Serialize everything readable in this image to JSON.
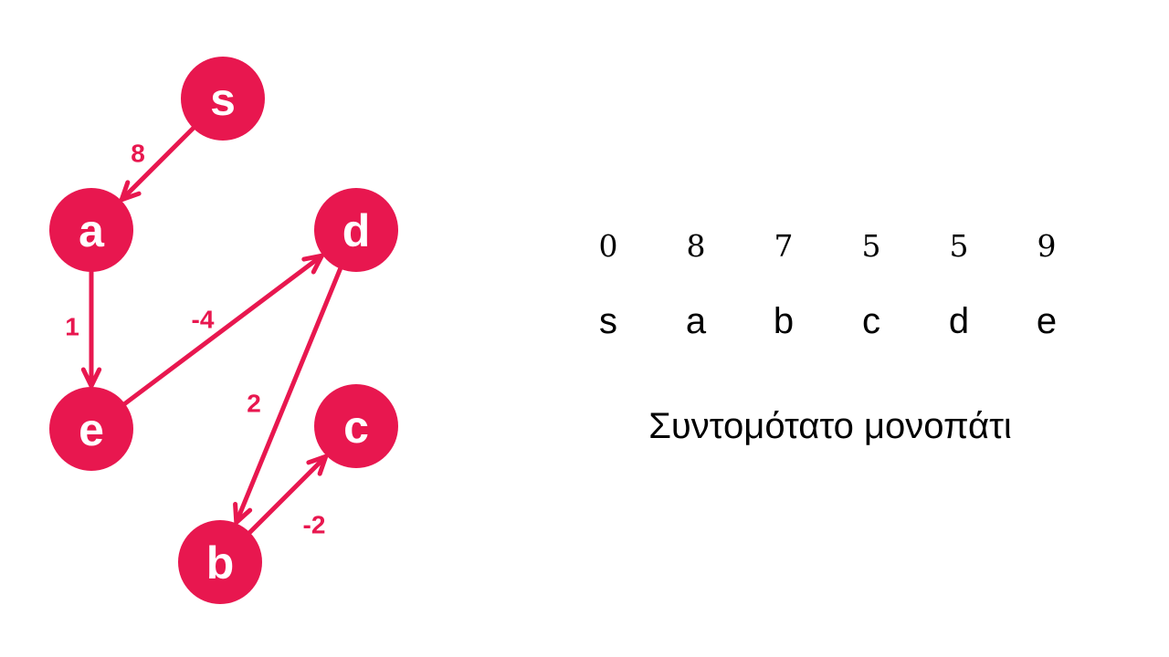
{
  "colors": {
    "accent": "#e8174f",
    "text": "#000000",
    "background": "#ffffff"
  },
  "graph": {
    "nodes": [
      {
        "id": "s",
        "label": "s"
      },
      {
        "id": "a",
        "label": "a"
      },
      {
        "id": "d",
        "label": "d"
      },
      {
        "id": "e",
        "label": "e"
      },
      {
        "id": "c",
        "label": "c"
      },
      {
        "id": "b",
        "label": "b"
      }
    ],
    "edges": [
      {
        "from": "s",
        "to": "a",
        "weight": "8"
      },
      {
        "from": "a",
        "to": "e",
        "weight": "1"
      },
      {
        "from": "e",
        "to": "d",
        "weight": "-4"
      },
      {
        "from": "d",
        "to": "b",
        "weight": "2"
      },
      {
        "from": "b",
        "to": "c",
        "weight": "-2"
      }
    ]
  },
  "table": {
    "distances": [
      "0",
      "8",
      "7",
      "5",
      "5",
      "9"
    ],
    "vertices": [
      "s",
      "a",
      "b",
      "c",
      "d",
      "e"
    ]
  },
  "title": "Συντομότατο μονοπάτι"
}
